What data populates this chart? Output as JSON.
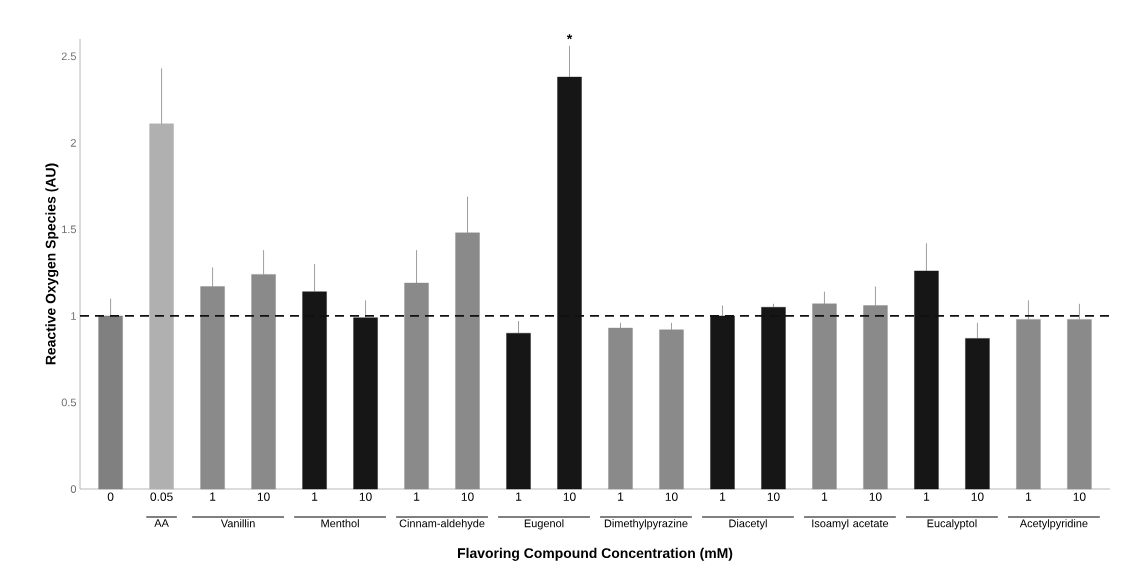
{
  "chart_data": {
    "type": "bar",
    "xlabel": "Flavoring Compound Concentration (mM)",
    "ylabel": "Reactive Oxygen Species (AU)",
    "categories": [
      "0",
      "0.05",
      "1",
      "10",
      "1",
      "10",
      "1",
      "10",
      "1",
      "10",
      "1",
      "10",
      "1",
      "10",
      "1",
      "10",
      "1",
      "10",
      "1",
      "10"
    ],
    "values": [
      1.0,
      2.11,
      1.17,
      1.24,
      1.14,
      0.99,
      1.19,
      1.48,
      0.9,
      2.38,
      0.93,
      0.92,
      1.0,
      1.05,
      1.07,
      1.06,
      1.26,
      0.87,
      0.98,
      0.98
    ],
    "colors": [
      "#808080",
      "#b0b0b0",
      "#8a8a8a",
      "#8a8a8a",
      "#161616",
      "#161616",
      "#8a8a8a",
      "#8a8a8a",
      "#161616",
      "#161616",
      "#8a8a8a",
      "#8a8a8a",
      "#161616",
      "#161616",
      "#8a8a8a",
      "#8a8a8a",
      "#161616",
      "#161616",
      "#8a8a8a",
      "#8a8a8a"
    ],
    "errors": [
      [
        1.0,
        1.1
      ],
      [
        2.11,
        2.43
      ],
      [
        1.17,
        1.28
      ],
      [
        1.24,
        1.38
      ],
      [
        1.14,
        1.3
      ],
      [
        0.99,
        1.09
      ],
      [
        1.19,
        1.38
      ],
      [
        1.48,
        1.69
      ],
      [
        0.9,
        0.97
      ],
      [
        2.38,
        2.56
      ],
      [
        0.93,
        0.96
      ],
      [
        0.92,
        0.96
      ],
      [
        1.0,
        1.06
      ],
      [
        1.05,
        1.07
      ],
      [
        1.07,
        1.14
      ],
      [
        1.06,
        1.17
      ],
      [
        1.26,
        1.42
      ],
      [
        0.87,
        0.96
      ],
      [
        0.98,
        1.09
      ],
      [
        0.98,
        1.07
      ]
    ],
    "value_labels": [
      null,
      null,
      null,
      null,
      null,
      null,
      null,
      null,
      null,
      "*",
      null,
      null,
      null,
      null,
      null,
      null,
      null,
      null,
      null,
      null
    ],
    "ylim": [
      0,
      2.6
    ],
    "yticks": [
      0,
      0.5,
      1,
      1.5,
      2,
      2.5
    ],
    "ref_lines": [
      {
        "axis": "y",
        "value": 1,
        "color": "#111111",
        "line_style": "dashed"
      }
    ],
    "annotations": [
      "AA",
      "Vanillin",
      "Menthol",
      "Cinnam-aldehyde",
      "Eugenol",
      "Dimethylpyrazine",
      "Diacetyl",
      "Isoamyl acetate",
      "Eucalyptol",
      "Acetylpyridine"
    ],
    "grid": false
  }
}
